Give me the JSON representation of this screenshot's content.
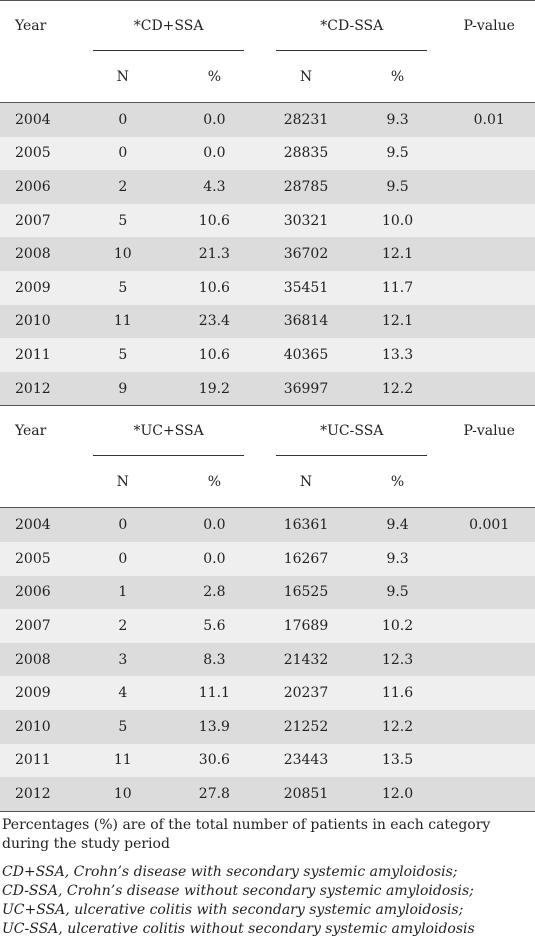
{
  "table1": {
    "header": {
      "year": "Year",
      "group1": "*CD+SSA",
      "group2": "*CD-SSA",
      "pvalue": "P-value"
    },
    "subheader": {
      "n1": "N",
      "p1": "%",
      "n2": "N",
      "p2": "%"
    },
    "rows": [
      {
        "year": "2004",
        "n1": "0",
        "p1": "0.0",
        "n2": "28231",
        "p2": "9.3",
        "pv": "0.01"
      },
      {
        "year": "2005",
        "n1": "0",
        "p1": "0.0",
        "n2": "28835",
        "p2": "9.5",
        "pv": ""
      },
      {
        "year": "2006",
        "n1": "2",
        "p1": "4.3",
        "n2": "28785",
        "p2": "9.5",
        "pv": ""
      },
      {
        "year": "2007",
        "n1": "5",
        "p1": "10.6",
        "n2": "30321",
        "p2": "10.0",
        "pv": ""
      },
      {
        "year": "2008",
        "n1": "10",
        "p1": "21.3",
        "n2": "36702",
        "p2": "12.1",
        "pv": ""
      },
      {
        "year": "2009",
        "n1": "5",
        "p1": "10.6",
        "n2": "35451",
        "p2": "11.7",
        "pv": ""
      },
      {
        "year": "2010",
        "n1": "11",
        "p1": "23.4",
        "n2": "36814",
        "p2": "12.1",
        "pv": ""
      },
      {
        "year": "2011",
        "n1": "5",
        "p1": "10.6",
        "n2": "40365",
        "p2": "13.3",
        "pv": ""
      },
      {
        "year": "2012",
        "n1": "9",
        "p1": "19.2",
        "n2": "36997",
        "p2": "12.2",
        "pv": ""
      }
    ]
  },
  "table2": {
    "header": {
      "year": "Year",
      "group1": "*UC+SSA",
      "group2": "*UC-SSA",
      "pvalue": "P-value"
    },
    "subheader": {
      "n1": "N",
      "p1": "%",
      "n2": "N",
      "p2": "%"
    },
    "rows": [
      {
        "year": "2004",
        "n1": "0",
        "p1": "0.0",
        "n2": "16361",
        "p2": "9.4",
        "pv": "0.001"
      },
      {
        "year": "2005",
        "n1": "0",
        "p1": "0.0",
        "n2": "16267",
        "p2": "9.3",
        "pv": ""
      },
      {
        "year": "2006",
        "n1": "1",
        "p1": "2.8",
        "n2": "16525",
        "p2": "9.5",
        "pv": ""
      },
      {
        "year": "2007",
        "n1": "2",
        "p1": "5.6",
        "n2": "17689",
        "p2": "10.2",
        "pv": ""
      },
      {
        "year": "2008",
        "n1": "3",
        "p1": "8.3",
        "n2": "21432",
        "p2": "12.3",
        "pv": ""
      },
      {
        "year": "2009",
        "n1": "4",
        "p1": "11.1",
        "n2": "20237",
        "p2": "11.6",
        "pv": ""
      },
      {
        "year": "2010",
        "n1": "5",
        "p1": "13.9",
        "n2": "21252",
        "p2": "12.2",
        "pv": ""
      },
      {
        "year": "2011",
        "n1": "11",
        "p1": "30.6",
        "n2": "23443",
        "p2": "13.5",
        "pv": ""
      },
      {
        "year": "2012",
        "n1": "10",
        "p1": "27.8",
        "n2": "20851",
        "p2": "12.0",
        "pv": ""
      }
    ]
  },
  "notes": {
    "percentages": "Percentages (%) are of the total number of patients in each category during the study period",
    "abbreviations": [
      "CD+SSA, Crohn’s disease with secondary systemic amyloidosis;",
      "CD-SSA, Crohn’s disease without secondary systemic amyloidosis;",
      "UC+SSA, ulcerative colitis with secondary systemic amyloidosis;",
      "UC-SSA, ulcerative colitis without secondary systemic amyloidosis"
    ]
  }
}
